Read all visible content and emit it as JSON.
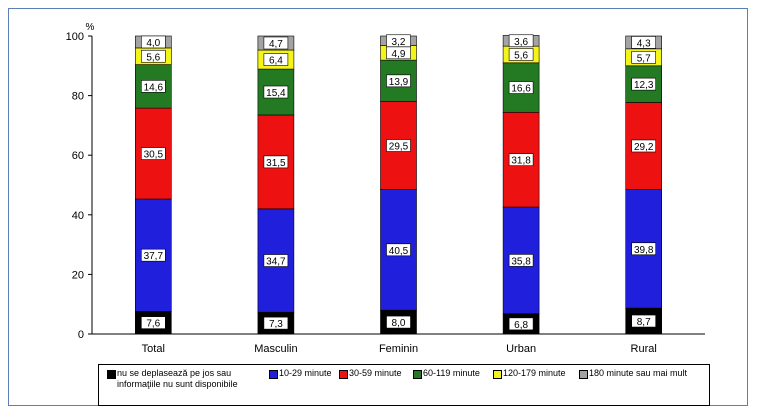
{
  "chart_data": {
    "type": "bar",
    "stacked": true,
    "categories": [
      "Total",
      "Masculin",
      "Feminin",
      "Urban",
      "Rural"
    ],
    "ylim": [
      0,
      100
    ],
    "yticks": [
      0,
      20,
      40,
      60,
      80,
      100
    ],
    "yunit": "%",
    "series": [
      {
        "name": "nu se deplasează pe jos sau informaţiile nu sunt disponibile",
        "color": "#000000",
        "values": [
          7.6,
          7.3,
          8.0,
          6.8,
          8.7
        ],
        "labels": [
          "7,6",
          "7,3",
          "8,0",
          "6,8",
          "8,7"
        ]
      },
      {
        "name": "10-29 minute",
        "color": "#1f1fdc",
        "values": [
          37.7,
          34.7,
          40.5,
          35.8,
          39.8
        ],
        "labels": [
          "37,7",
          "34,7",
          "40,5",
          "35,8",
          "39,8"
        ]
      },
      {
        "name": "30-59 minute",
        "color": "#ee1111",
        "values": [
          30.5,
          31.5,
          29.5,
          31.8,
          29.2
        ],
        "labels": [
          "30,5",
          "31,5",
          "29,5",
          "31,8",
          "29,2"
        ]
      },
      {
        "name": "60-119 minute",
        "color": "#237a23",
        "values": [
          14.6,
          15.4,
          13.9,
          16.6,
          12.3
        ],
        "labels": [
          "14,6",
          "15,4",
          "13,9",
          "16,6",
          "12,3"
        ]
      },
      {
        "name": "120-179 minute",
        "color": "#f4f41a",
        "values": [
          5.6,
          6.4,
          4.9,
          5.6,
          5.7
        ],
        "labels": [
          "5,6",
          "6,4",
          "4,9",
          "5,6",
          "5,7"
        ]
      },
      {
        "name": "180 minute sau mai mult",
        "color": "#a3a3a3",
        "values": [
          4.0,
          4.7,
          3.2,
          3.6,
          4.3
        ],
        "labels": [
          "4,0",
          "4,7",
          "3,2",
          "3,6",
          "4,3"
        ]
      }
    ],
    "legend_position": "bottom",
    "grid": false
  }
}
